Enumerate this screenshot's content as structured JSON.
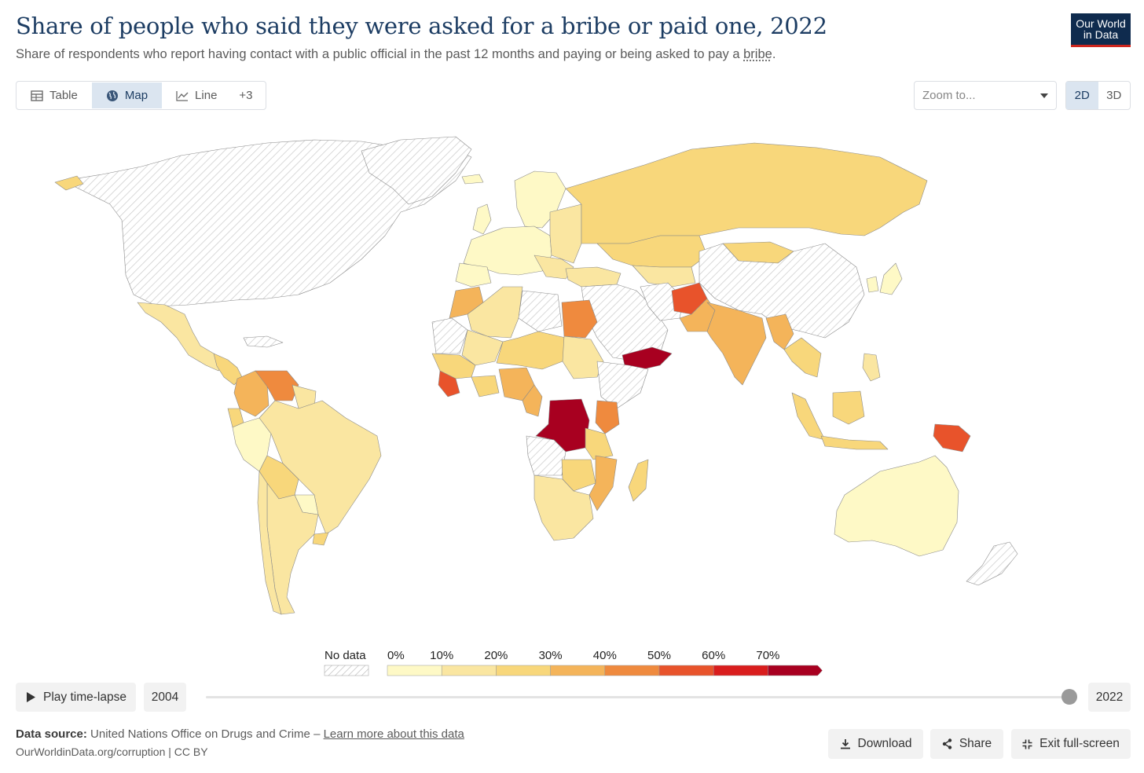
{
  "header": {
    "title": "Share of people who said they were asked for a bribe or paid one, 2022",
    "subtitle_prefix": "Share of respondents who report having contact with a public official in the past 12 months and paying or being asked to pay a ",
    "subtitle_link": "bribe",
    "subtitle_suffix": ".",
    "logo_line1": "Our World",
    "logo_line2": "in Data"
  },
  "tabs": [
    {
      "label": "Table",
      "icon": "table-icon"
    },
    {
      "label": "Map",
      "icon": "globe-icon",
      "active": true
    },
    {
      "label": "Line",
      "icon": "line-chart-icon"
    },
    {
      "label": "+3"
    }
  ],
  "zoom": {
    "placeholder": "Zoom to..."
  },
  "projection": {
    "options": [
      "2D",
      "3D"
    ],
    "selected": "2D"
  },
  "legend": {
    "no_data_label": "No data",
    "bins": [
      "0%",
      "10%",
      "20%",
      "30%",
      "40%",
      "50%",
      "60%",
      "70%"
    ],
    "colors": [
      "#fef9c6",
      "#fae6a1",
      "#f8d77b",
      "#f4b45a",
      "#ef8a3e",
      "#e8532b",
      "#d91d1d",
      "#a80020"
    ],
    "no_data_color": "#e8e8e8"
  },
  "timeline": {
    "play_label": "Play time-lapse",
    "start_year": "2004",
    "end_year": "2022"
  },
  "footer": {
    "source_label": "Data source:",
    "source_text": "United Nations Office on Drugs and Crime – ",
    "learn_more": "Learn more about this data",
    "url": "OurWorldinData.org/corruption | CC BY",
    "download": "Download",
    "share": "Share",
    "fullscreen": "Exit full-screen"
  }
}
